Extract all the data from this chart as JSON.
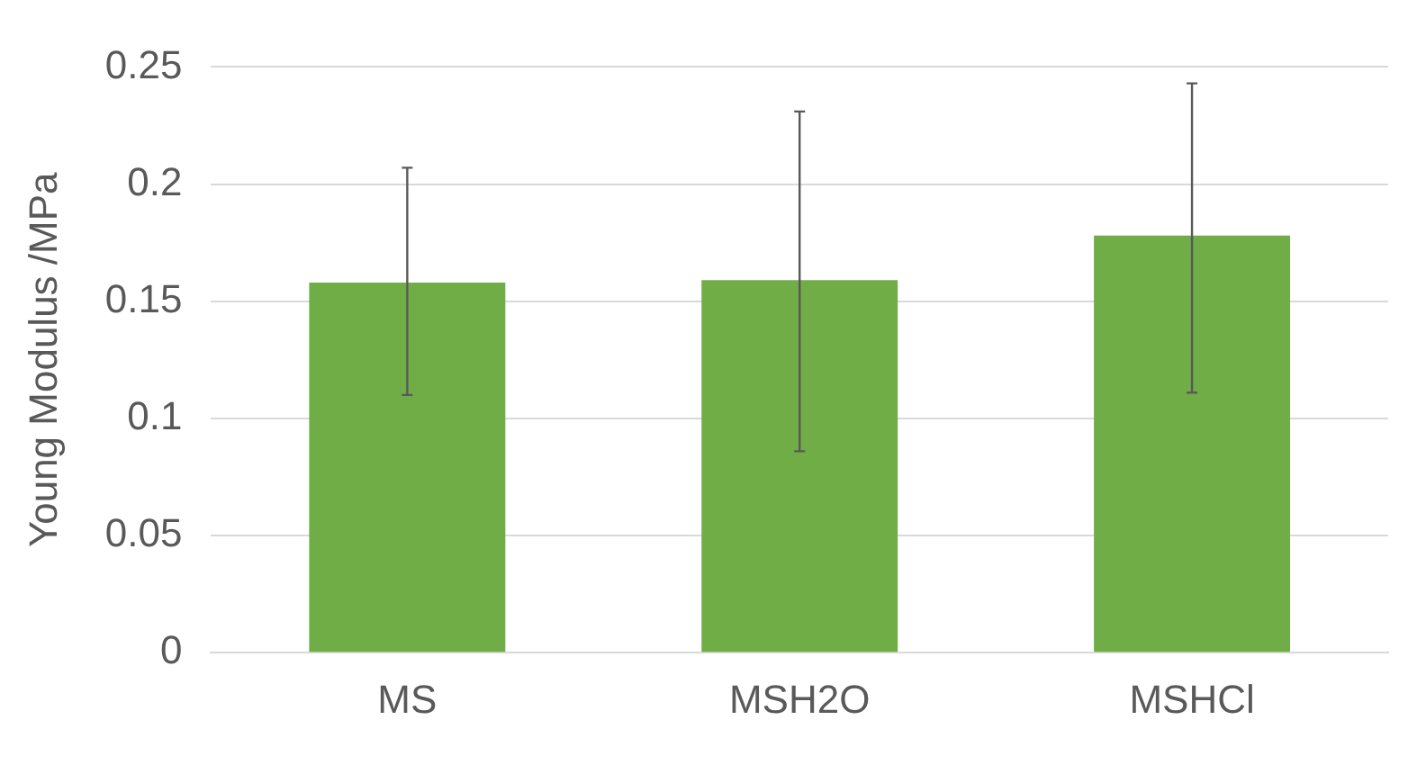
{
  "chart_data": {
    "type": "bar",
    "ylabel": "Young Modulus /MPa",
    "categories": [
      "MS",
      "MSH2O",
      "MSHCl"
    ],
    "values": [
      0.158,
      0.159,
      0.178
    ],
    "errors": [
      [
        0.11,
        0.207
      ],
      [
        0.086,
        0.231
      ],
      [
        0.111,
        0.243
      ]
    ],
    "color": "#70ad47",
    "ylim": [
      0,
      0.25
    ],
    "yticks": [
      0,
      0.05,
      0.1,
      0.15,
      0.2,
      0.25
    ],
    "grid": "y",
    "legend": false
  }
}
